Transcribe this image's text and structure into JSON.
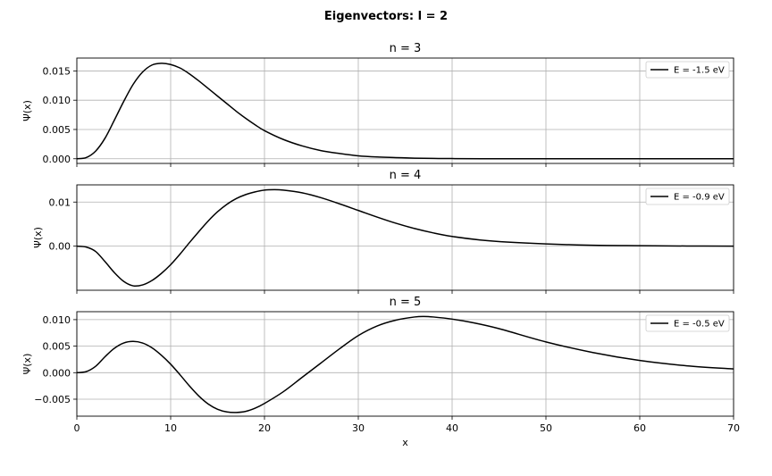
{
  "figure": {
    "suptitle": "Eigenvectors: l = 2"
  },
  "chart_data": [
    {
      "type": "line",
      "title": "n = 3",
      "xlabel": "",
      "ylabel": "Ψ(x)",
      "xlim": [
        0,
        70
      ],
      "ylim": [
        -0.0008,
        0.0172
      ],
      "xticks": [
        0,
        10,
        20,
        30,
        40,
        50,
        60,
        70
      ],
      "show_xticklabels": false,
      "yticks": [
        0.0,
        0.005,
        0.01,
        0.015
      ],
      "ytick_labels": [
        "0.000",
        "0.005",
        "0.010",
        "0.015"
      ],
      "grid": true,
      "legend_position": "top-right",
      "series": [
        {
          "name": "E = -1.5 eV",
          "color": "#000000",
          "x": [
            0,
            1,
            2,
            3,
            4,
            5,
            6,
            7,
            8,
            9,
            10,
            11,
            12,
            13,
            14,
            15,
            16,
            17,
            18,
            19,
            20,
            22,
            24,
            26,
            28,
            30,
            32,
            34,
            36,
            38,
            40,
            45,
            50,
            55,
            60,
            65,
            70
          ],
          "y": [
            0.0,
            0.0002,
            0.0013,
            0.0035,
            0.0066,
            0.0098,
            0.0127,
            0.0148,
            0.016,
            0.0163,
            0.0161,
            0.0155,
            0.0145,
            0.0133,
            0.012,
            0.0107,
            0.0094,
            0.0081,
            0.0069,
            0.0058,
            0.0048,
            0.0033,
            0.0022,
            0.0014,
            0.0009,
            0.0005,
            0.0003,
            0.0002,
            0.0001,
            5e-05,
            3e-05,
            0.0,
            0.0,
            0.0,
            0.0,
            0.0,
            0.0
          ]
        }
      ]
    },
    {
      "type": "line",
      "title": "n = 4",
      "xlabel": "",
      "ylabel": "Ψ(x)",
      "xlim": [
        0,
        70
      ],
      "ylim": [
        -0.01,
        0.0139
      ],
      "xticks": [
        0,
        10,
        20,
        30,
        40,
        50,
        60,
        70
      ],
      "show_xticklabels": false,
      "yticks": [
        0.0,
        0.01
      ],
      "ytick_labels": [
        "0.00",
        "0.01"
      ],
      "grid": true,
      "legend_position": "top-right",
      "series": [
        {
          "name": "E = -0.9 eV",
          "color": "#000000",
          "x": [
            0,
            1,
            2,
            3,
            4,
            5,
            6,
            7,
            8,
            9,
            10,
            11,
            12,
            13,
            14,
            15,
            16,
            17,
            18,
            19,
            20,
            21,
            22,
            24,
            26,
            28,
            30,
            32,
            34,
            36,
            38,
            40,
            43,
            46,
            50,
            55,
            60,
            65,
            70
          ],
          "y": [
            0.0,
            -0.0002,
            -0.0012,
            -0.0035,
            -0.006,
            -0.008,
            -0.009,
            -0.0088,
            -0.0078,
            -0.0062,
            -0.0042,
            -0.0018,
            0.0008,
            0.0033,
            0.0057,
            0.0078,
            0.0095,
            0.0108,
            0.0117,
            0.0123,
            0.0127,
            0.0128,
            0.0127,
            0.0121,
            0.011,
            0.0096,
            0.0081,
            0.0066,
            0.0052,
            0.004,
            0.003,
            0.0022,
            0.0014,
            0.0009,
            0.0005,
            0.0002,
            0.0001,
            3e-05,
            0.0
          ]
        }
      ]
    },
    {
      "type": "line",
      "title": "n = 5",
      "xlabel": "x",
      "ylabel": "Ψ(x)",
      "xlim": [
        0,
        70
      ],
      "ylim": [
        -0.0082,
        0.0115
      ],
      "xticks": [
        0,
        10,
        20,
        30,
        40,
        50,
        60,
        70
      ],
      "xtick_labels": [
        "0",
        "10",
        "20",
        "30",
        "40",
        "50",
        "60",
        "70"
      ],
      "show_xticklabels": true,
      "yticks": [
        -0.005,
        0.0,
        0.005,
        0.01
      ],
      "ytick_labels": [
        "−0.005",
        "0.000",
        "0.005",
        "0.010"
      ],
      "grid": true,
      "legend_position": "top-right",
      "series": [
        {
          "name": "E = -0.5 eV",
          "color": "#000000",
          "x": [
            0,
            1,
            2,
            3,
            4,
            5,
            6,
            7,
            8,
            9,
            10,
            11,
            12,
            13,
            14,
            15,
            16,
            17,
            18,
            19,
            20,
            22,
            24,
            26,
            28,
            30,
            32,
            34,
            36,
            37,
            38,
            40,
            42,
            45,
            50,
            55,
            60,
            65,
            70
          ],
          "y": [
            0.0,
            0.0002,
            0.0012,
            0.003,
            0.0046,
            0.0056,
            0.0059,
            0.0056,
            0.0047,
            0.0033,
            0.0016,
            -0.0004,
            -0.0025,
            -0.0044,
            -0.0059,
            -0.0069,
            -0.0074,
            -0.0075,
            -0.0073,
            -0.0067,
            -0.0058,
            -0.0036,
            -0.0009,
            0.0018,
            0.0045,
            0.007,
            0.0088,
            0.0099,
            0.0105,
            0.0106,
            0.0105,
            0.0101,
            0.0095,
            0.0083,
            0.0058,
            0.0038,
            0.0023,
            0.0013,
            0.0007
          ]
        }
      ]
    }
  ]
}
